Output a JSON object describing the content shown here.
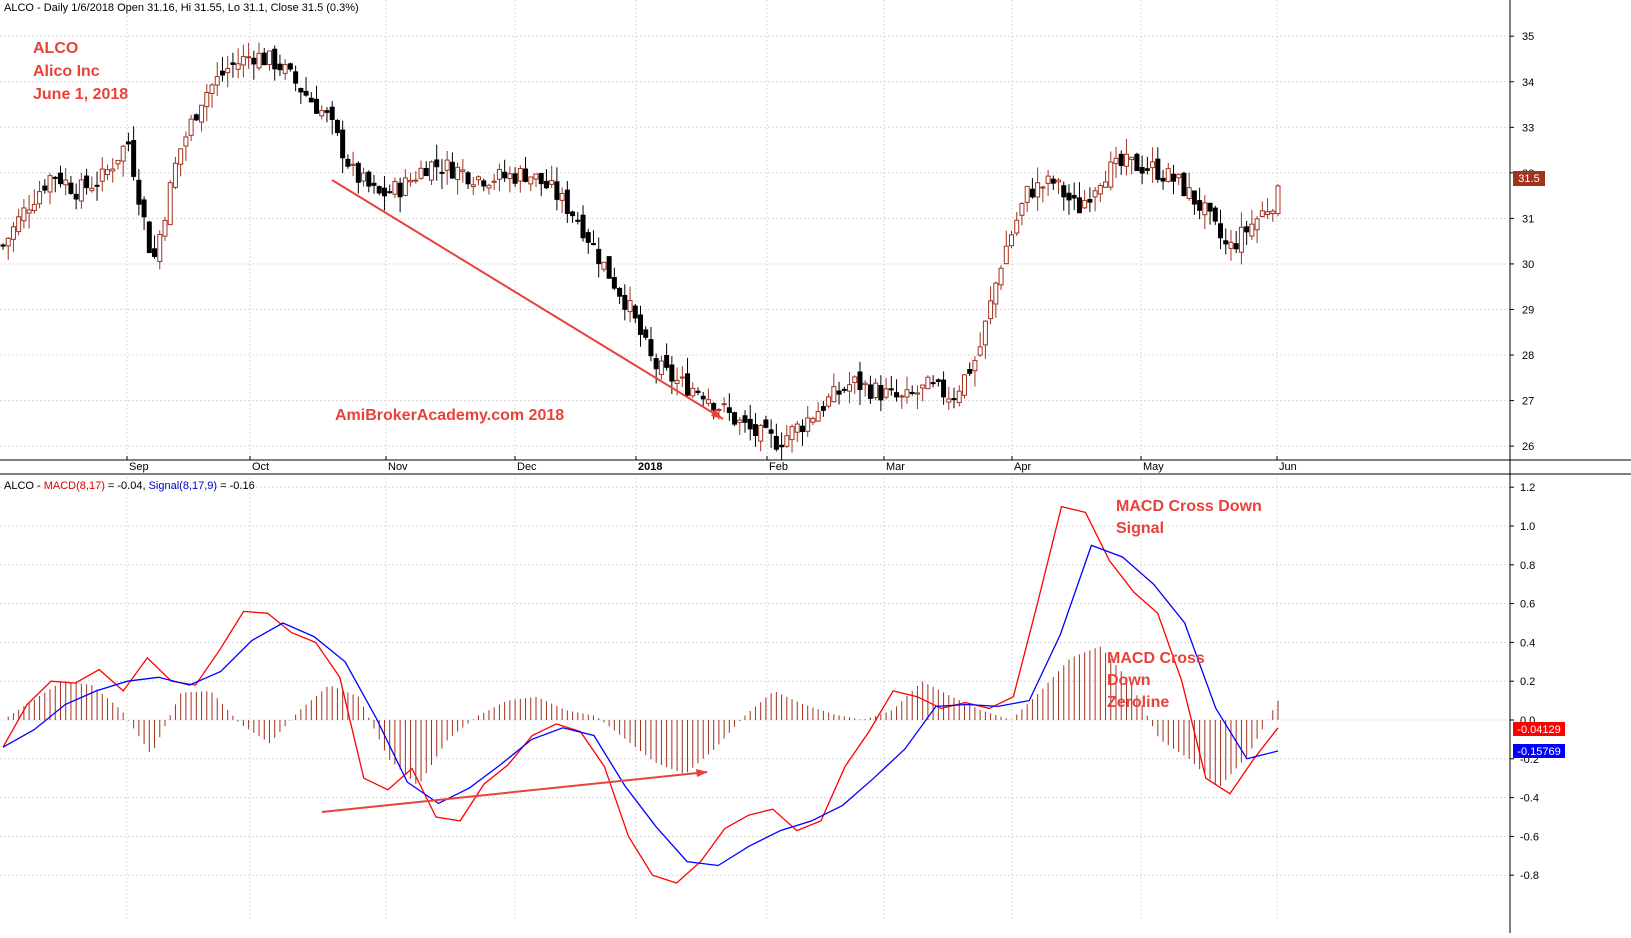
{
  "header": {
    "price": "ALCO - Daily 1/6/2018 Open 31.16, Hi 31.55, Lo 31.1, Close 31.5 (0.3%)",
    "macd_prefix": "ALCO - ",
    "macd_label": "MACD(8,17)",
    "macd_value": " = -0.04, ",
    "signal_label": "Signal(8,17,9)",
    "signal_value": " = -0.16"
  },
  "annotations": {
    "ticker": "ALCO",
    "company": "Alico Inc",
    "date": "June 1, 2018",
    "watermark": "AmiBrokerAcademy.com  2018",
    "cross_signal_1": "MACD Cross Down",
    "cross_signal_2": "Signal",
    "cross_zero_1": "MACD Cross",
    "cross_zero_2": "Down",
    "cross_zero_3": "Zeroline"
  },
  "colors": {
    "up": "#a0321e",
    "down": "#000000",
    "macd": "#ff0000",
    "signal": "#0000ff",
    "hist": "#a0321e",
    "annotation": "#e8423a",
    "grid": "#d8d8d8"
  },
  "chart_data": [
    {
      "type": "candlestick",
      "title": "ALCO - Daily",
      "x_labels": [
        "Sep",
        "Oct",
        "Nov",
        "Dec",
        "2018",
        "Feb",
        "Mar",
        "Apr",
        "May",
        "Jun"
      ],
      "ylim": [
        25.3,
        35.4
      ],
      "y_ticks": [
        26,
        27,
        28,
        29,
        30,
        31,
        32,
        33,
        34,
        35
      ],
      "last_price_label": "31.5",
      "close_path": [
        30.4,
        31.3,
        32.0,
        31.6,
        31.9,
        32.7,
        30.0,
        32.4,
        33.7,
        34.3,
        34.6,
        34.4,
        33.8,
        33.2,
        32.0,
        31.5,
        31.7,
        32.2,
        32.1,
        31.9,
        31.9,
        32.0,
        31.6,
        31.0,
        30.0,
        29.1,
        27.8,
        27.4,
        27.2,
        26.7,
        26.3,
        26.1,
        26.5,
        27.0,
        27.4,
        27.2,
        27.0,
        27.3,
        27.1,
        28.0,
        30.2,
        31.6,
        31.8,
        31.2,
        32.0,
        32.2,
        32.1,
        31.8,
        31.2,
        30.3,
        30.9,
        31.5
      ],
      "high": 35.0,
      "low": 25.6
    },
    {
      "type": "line",
      "title": "MACD(8,17), Signal(8,17,9)",
      "ylim": [
        -0.9,
        1.25
      ],
      "y_ticks": [
        -0.8,
        -0.6,
        -0.4,
        -0.2,
        0.0,
        0.2,
        0.4,
        0.6,
        0.8,
        1.0,
        1.2
      ],
      "macd_value_label": "-0.04129",
      "signal_value_label": "-0.15769",
      "series": [
        {
          "name": "MACD(8,17)",
          "values": [
            -0.14,
            0.08,
            0.2,
            0.19,
            0.26,
            0.15,
            0.32,
            0.2,
            0.18,
            0.36,
            0.56,
            0.55,
            0.45,
            0.4,
            0.22,
            -0.3,
            -0.36,
            -0.25,
            -0.5,
            -0.52,
            -0.33,
            -0.23,
            -0.08,
            -0.02,
            -0.06,
            -0.24,
            -0.6,
            -0.8,
            -0.84,
            -0.73,
            -0.56,
            -0.49,
            -0.46,
            -0.57,
            -0.52,
            -0.24,
            -0.06,
            0.15,
            0.12,
            0.06,
            0.09,
            0.06,
            0.12,
            0.6,
            1.1,
            1.07,
            0.82,
            0.66,
            0.55,
            0.2,
            -0.3,
            -0.38,
            -0.2,
            -0.04
          ]
        },
        {
          "name": "Signal(8,17,9)",
          "values": [
            -0.14,
            -0.05,
            0.08,
            0.15,
            0.2,
            0.22,
            0.18,
            0.25,
            0.41,
            0.5,
            0.43,
            0.3,
            0.01,
            -0.32,
            -0.43,
            -0.35,
            -0.23,
            -0.1,
            -0.04,
            -0.08,
            -0.34,
            -0.55,
            -0.73,
            -0.75,
            -0.65,
            -0.57,
            -0.52,
            -0.44,
            -0.3,
            -0.15,
            0.07,
            0.08,
            0.07,
            0.1,
            0.44,
            0.9,
            0.84,
            0.7,
            0.5,
            0.06,
            -0.2,
            -0.16
          ]
        }
      ],
      "histogram_envelope": [
        0.0,
        0.1,
        0.2,
        0.18,
        0.05,
        -0.18,
        0.14,
        0.15,
        -0.02,
        -0.12,
        0.05,
        0.18,
        0.12,
        -0.2,
        -0.34,
        -0.1,
        0.02,
        0.1,
        0.12,
        0.05,
        0.02,
        -0.1,
        -0.22,
        -0.28,
        -0.15,
        0.02,
        0.15,
        0.08,
        0.03,
        0.0,
        0.05,
        0.2,
        0.12,
        0.05,
        0.0,
        0.15,
        0.32,
        0.38,
        0.2,
        -0.1,
        -0.2,
        -0.35,
        -0.18,
        0.1
      ]
    }
  ]
}
